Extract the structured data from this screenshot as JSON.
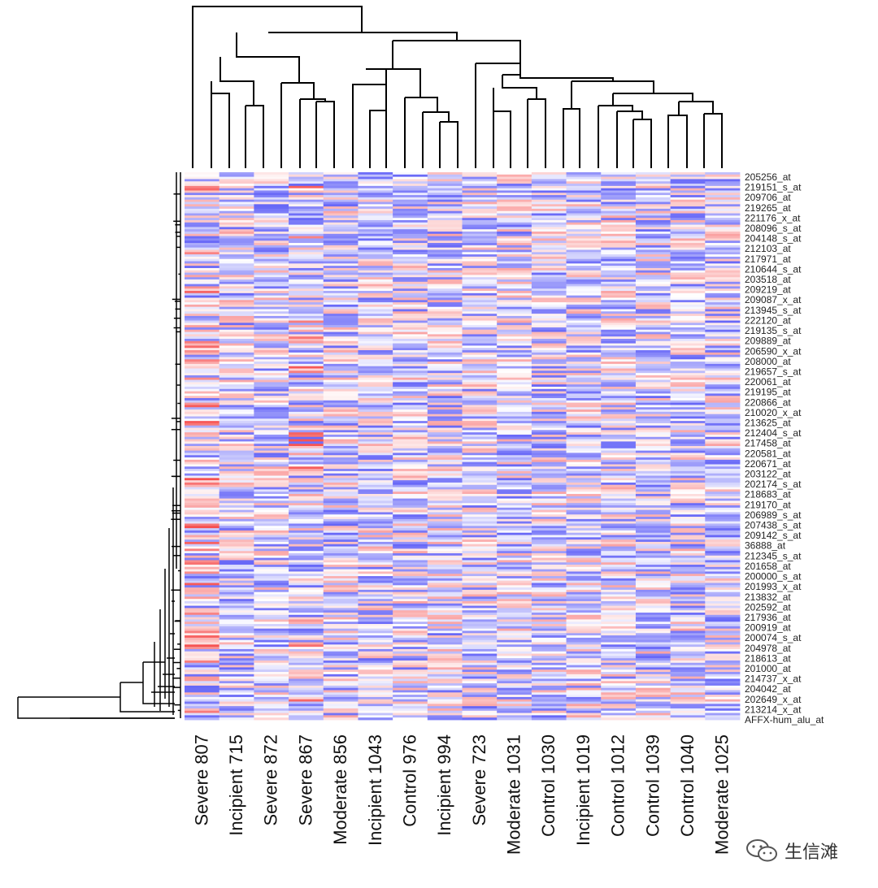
{
  "chart_data": {
    "type": "heatmap",
    "title": "",
    "columns": [
      "Severe 807",
      "Incipient 715",
      "Severe 872",
      "Severe 867",
      "Moderate 856",
      "Incipient 1043",
      "Control  976",
      "Incipient 994",
      "Severe 723",
      "Moderate 1031",
      "Control 1030",
      "Incipient 1019",
      "Control 1012",
      "Control 1039",
      "Control 1040",
      "Moderate 1025"
    ],
    "row_labels": [
      "205256_at",
      "219151_s_at",
      "209706_at",
      "219265_at",
      "221176_x_at",
      "208096_s_at",
      "204148_s_at",
      "212103_at",
      "217971_at",
      "210644_s_at",
      "203518_at",
      "209219_at",
      "209087_x_at",
      "213945_s_at",
      "222120_at",
      "219135_s_at",
      "209889_at",
      "206590_x_at",
      "208000_at",
      "219657_s_at",
      "220061_at",
      "219195_at",
      "220866_at",
      "210020_x_at",
      "213625_at",
      "212404_s_at",
      "217458_at",
      "220581_at",
      "220671_at",
      "203122_at",
      "202174_s_at",
      "218683_at",
      "219170_at",
      "206989_s_at",
      "207438_s_at",
      "209142_s_at",
      "36888_at",
      "212345_s_at",
      "201658_at",
      "200000_s_at",
      "201993_x_at",
      "213832_at",
      "202592_at",
      "217936_at",
      "200919_at",
      "200074_s_at",
      "204978_at",
      "218613_at",
      "201000_at",
      "214737_x_at",
      "204042_at",
      "202649_x_at",
      "213214_x_at",
      "AFFX-hum_alu_at"
    ],
    "color_scale": {
      "low": "#3b3bf5",
      "mid": "#ffffff",
      "high": "#f53b3b"
    },
    "column_dendrogram": true,
    "row_dendrogram": true
  },
  "watermark": {
    "text": "生信滩",
    "icon": "wechat-icon"
  }
}
